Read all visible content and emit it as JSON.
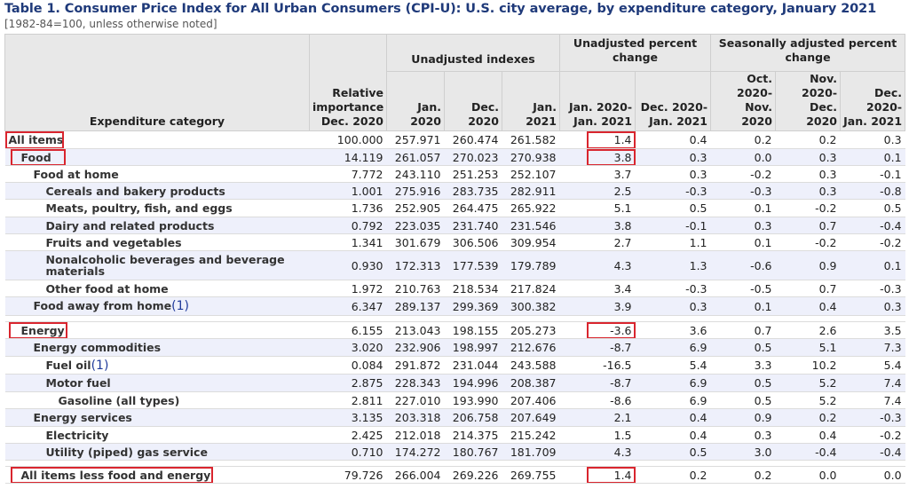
{
  "title": "Table 1. Consumer Price Index for All Urban Consumers (CPI-U): U.S. city average, by expenditure category, January 2021",
  "subtitle": "[1982-84=100, unless otherwise noted]",
  "headers": {
    "category": "Expenditure category",
    "relative": "Relative importance Dec. 2020",
    "unadj_idx": "Unadjusted indexes",
    "unadj_pct": "Unadjusted percent change",
    "sa_pct": "Seasonally adjusted percent change",
    "cols": [
      "Jan. 2020",
      "Dec. 2020",
      "Jan. 2021",
      "Jan. 2020- Jan. 2021",
      "Dec. 2020- Jan. 2021",
      "Oct. 2020- Nov. 2020",
      "Nov. 2020- Dec. 2020",
      "Dec. 2020- Jan. 2021"
    ]
  },
  "rows": [
    {
      "name": "All items",
      "vals": [
        "100.000",
        "257.971",
        "260.474",
        "261.582",
        "1.4",
        "0.4",
        "0.2",
        "0.2",
        "0.3"
      ]
    },
    {
      "name": "Food",
      "vals": [
        "14.119",
        "261.057",
        "270.023",
        "270.938",
        "3.8",
        "0.3",
        "0.0",
        "0.3",
        "0.1"
      ]
    },
    {
      "name": "Food at home",
      "vals": [
        "7.772",
        "243.110",
        "251.253",
        "252.107",
        "3.7",
        "0.3",
        "-0.2",
        "0.3",
        "-0.1"
      ]
    },
    {
      "name": "Cereals and bakery products",
      "vals": [
        "1.001",
        "275.916",
        "283.735",
        "282.911",
        "2.5",
        "-0.3",
        "-0.3",
        "0.3",
        "-0.8"
      ]
    },
    {
      "name": "Meats, poultry, fish, and eggs",
      "vals": [
        "1.736",
        "252.905",
        "264.475",
        "265.922",
        "5.1",
        "0.5",
        "0.1",
        "-0.2",
        "0.5"
      ]
    },
    {
      "name": "Dairy and related products",
      "vals": [
        "0.792",
        "223.035",
        "231.740",
        "231.546",
        "3.8",
        "-0.1",
        "0.3",
        "0.7",
        "-0.4"
      ]
    },
    {
      "name": "Fruits and vegetables",
      "vals": [
        "1.341",
        "301.679",
        "306.506",
        "309.954",
        "2.7",
        "1.1",
        "0.1",
        "-0.2",
        "-0.2"
      ]
    },
    {
      "name": "Nonalcoholic beverages and beverage materials",
      "vals": [
        "0.930",
        "172.313",
        "177.539",
        "179.789",
        "4.3",
        "1.3",
        "-0.6",
        "0.9",
        "0.1"
      ]
    },
    {
      "name": "Other food at home",
      "vals": [
        "1.972",
        "210.763",
        "218.534",
        "217.824",
        "3.4",
        "-0.3",
        "-0.5",
        "0.7",
        "-0.3"
      ]
    },
    {
      "name": "Food away from home",
      "fn": "(1)",
      "vals": [
        "6.347",
        "289.137",
        "299.369",
        "300.382",
        "3.9",
        "0.3",
        "0.1",
        "0.4",
        "0.3"
      ]
    },
    {
      "name": "Energy",
      "vals": [
        "6.155",
        "213.043",
        "198.155",
        "205.273",
        "-3.6",
        "3.6",
        "0.7",
        "2.6",
        "3.5"
      ]
    },
    {
      "name": "Energy commodities",
      "vals": [
        "3.020",
        "232.906",
        "198.997",
        "212.676",
        "-8.7",
        "6.9",
        "0.5",
        "5.1",
        "7.3"
      ]
    },
    {
      "name": "Fuel oil",
      "fn": "(1)",
      "vals": [
        "0.084",
        "291.872",
        "231.044",
        "243.588",
        "-16.5",
        "5.4",
        "3.3",
        "10.2",
        "5.4"
      ]
    },
    {
      "name": "Motor fuel",
      "vals": [
        "2.875",
        "228.343",
        "194.996",
        "208.387",
        "-8.7",
        "6.9",
        "0.5",
        "5.2",
        "7.4"
      ]
    },
    {
      "name": "Gasoline (all types)",
      "vals": [
        "2.811",
        "227.010",
        "193.990",
        "207.406",
        "-8.6",
        "6.9",
        "0.5",
        "5.2",
        "7.4"
      ]
    },
    {
      "name": "Energy services",
      "vals": [
        "3.135",
        "203.318",
        "206.758",
        "207.649",
        "2.1",
        "0.4",
        "0.9",
        "0.2",
        "-0.3"
      ]
    },
    {
      "name": "Electricity",
      "vals": [
        "2.425",
        "212.018",
        "214.375",
        "215.242",
        "1.5",
        "0.4",
        "0.3",
        "0.4",
        "-0.2"
      ]
    },
    {
      "name": "Utility (piped) gas service",
      "vals": [
        "0.710",
        "174.272",
        "180.767",
        "181.709",
        "4.3",
        "0.5",
        "3.0",
        "-0.4",
        "-0.4"
      ]
    },
    {
      "name": "All items less food and energy",
      "vals": [
        "79.726",
        "266.004",
        "269.226",
        "269.755",
        "1.4",
        "0.2",
        "0.2",
        "0.0",
        "0.0"
      ]
    }
  ]
}
